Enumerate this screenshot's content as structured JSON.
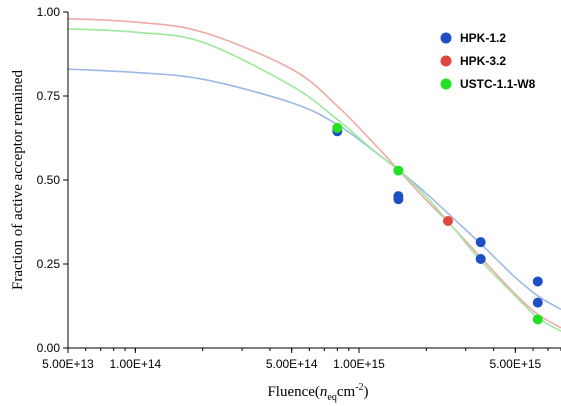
{
  "chart_data": {
    "type": "scatter",
    "title": "",
    "xlabel": {
      "prefix": "Fluence(",
      "symbol": "n",
      "subscript": "eq",
      "unit": "cm",
      "superscript": "-2",
      "suffix": ")"
    },
    "ylabel": "Fraction of active acceptor remained",
    "x_scale": "log",
    "xlim": [
      50000000000000.0,
      8000000000000000.0
    ],
    "ylim": [
      0.0,
      1.0
    ],
    "x_ticks": [
      {
        "value": 50000000000000.0,
        "label": "5.00E+13"
      },
      {
        "value": 100000000000000.0,
        "label": "1.00E+14"
      },
      {
        "value": 500000000000000.0,
        "label": "5.00E+14"
      },
      {
        "value": 1000000000000000.0,
        "label": "1.00E+15"
      },
      {
        "value": 5000000000000000.0,
        "label": "5.00E+15"
      }
    ],
    "y_ticks": [
      {
        "value": 0.0,
        "label": "0.00"
      },
      {
        "value": 0.25,
        "label": "0.25"
      },
      {
        "value": 0.5,
        "label": "0.50"
      },
      {
        "value": 0.75,
        "label": "0.75"
      },
      {
        "value": 1.0,
        "label": "1.00"
      }
    ],
    "grid": false,
    "legend_position": "top-right",
    "series": [
      {
        "name": "HPK-1.2",
        "color": "#1f4fc4",
        "curve_color": "#9db8e6",
        "points": [
          {
            "x": 800000000000000.0,
            "y": 0.645
          },
          {
            "x": 1500000000000000.0,
            "y": 0.443
          },
          {
            "x": 1500000000000000.0,
            "y": 0.452
          },
          {
            "x": 3500000000000000.0,
            "y": 0.315
          },
          {
            "x": 3500000000000000.0,
            "y": 0.265
          },
          {
            "x": 6300000000000000.0,
            "y": 0.198
          },
          {
            "x": 6300000000000000.0,
            "y": 0.135
          }
        ],
        "curve": [
          {
            "x": 50000000000000.0,
            "y": 0.83
          },
          {
            "x": 100000000000000.0,
            "y": 0.82
          },
          {
            "x": 200000000000000.0,
            "y": 0.8
          },
          {
            "x": 500000000000000.0,
            "y": 0.73
          },
          {
            "x": 800000000000000.0,
            "y": 0.665
          },
          {
            "x": 1200000000000000.0,
            "y": 0.58
          },
          {
            "x": 1500000000000000.0,
            "y": 0.53
          },
          {
            "x": 2000000000000000.0,
            "y": 0.46
          },
          {
            "x": 2700000000000000.0,
            "y": 0.38
          },
          {
            "x": 3500000000000000.0,
            "y": 0.31
          },
          {
            "x": 5000000000000000.0,
            "y": 0.21
          },
          {
            "x": 6300000000000000.0,
            "y": 0.155
          },
          {
            "x": 8000000000000000.0,
            "y": 0.115
          }
        ]
      },
      {
        "name": "HPK-3.2",
        "color": "#e0463c",
        "curve_color": "#f0aaa5",
        "points": [
          {
            "x": 2500000000000000.0,
            "y": 0.378
          }
        ],
        "curve": [
          {
            "x": 50000000000000.0,
            "y": 0.98
          },
          {
            "x": 100000000000000.0,
            "y": 0.97
          },
          {
            "x": 200000000000000.0,
            "y": 0.94
          },
          {
            "x": 500000000000000.0,
            "y": 0.83
          },
          {
            "x": 800000000000000.0,
            "y": 0.72
          },
          {
            "x": 1200000000000000.0,
            "y": 0.6
          },
          {
            "x": 1500000000000000.0,
            "y": 0.53
          },
          {
            "x": 2000000000000000.0,
            "y": 0.44
          },
          {
            "x": 2500000000000000.0,
            "y": 0.375
          },
          {
            "x": 3500000000000000.0,
            "y": 0.27
          },
          {
            "x": 5000000000000000.0,
            "y": 0.16
          },
          {
            "x": 6300000000000000.0,
            "y": 0.1
          },
          {
            "x": 8000000000000000.0,
            "y": 0.06
          }
        ]
      },
      {
        "name": "USTC-1.1-W8",
        "color": "#22e022",
        "curve_color": "#9de89d",
        "points": [
          {
            "x": 800000000000000.0,
            "y": 0.655
          },
          {
            "x": 1500000000000000.0,
            "y": 0.528
          },
          {
            "x": 6300000000000000.0,
            "y": 0.085
          }
        ],
        "curve": [
          {
            "x": 50000000000000.0,
            "y": 0.95
          },
          {
            "x": 100000000000000.0,
            "y": 0.94
          },
          {
            "x": 200000000000000.0,
            "y": 0.91
          },
          {
            "x": 500000000000000.0,
            "y": 0.78
          },
          {
            "x": 800000000000000.0,
            "y": 0.68
          },
          {
            "x": 1200000000000000.0,
            "y": 0.58
          },
          {
            "x": 1500000000000000.0,
            "y": 0.53
          },
          {
            "x": 2000000000000000.0,
            "y": 0.45
          },
          {
            "x": 2700000000000000.0,
            "y": 0.35
          },
          {
            "x": 3500000000000000.0,
            "y": 0.26
          },
          {
            "x": 5000000000000000.0,
            "y": 0.155
          },
          {
            "x": 6300000000000000.0,
            "y": 0.09
          },
          {
            "x": 8000000000000000.0,
            "y": 0.05
          }
        ]
      }
    ]
  }
}
